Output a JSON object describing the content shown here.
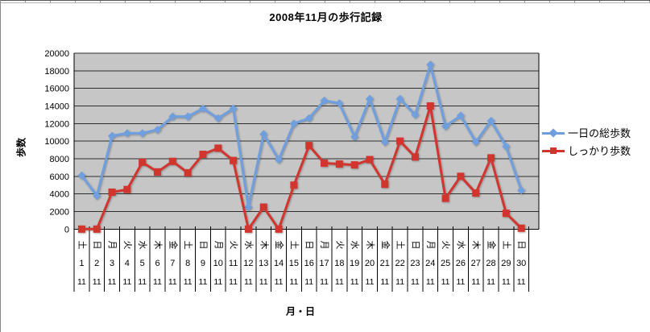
{
  "chart_data": {
    "type": "line",
    "title": "2008年11月の歩行記録",
    "x_axis_title": "月・日",
    "y_axis_title": "歩数",
    "ylim": [
      0,
      20000
    ],
    "y_ticks": [
      0,
      2000,
      4000,
      6000,
      8000,
      10000,
      12000,
      14000,
      16000,
      18000,
      20000
    ],
    "grid": true,
    "legend_position": "right",
    "plot_bg_color": "#c6c6c6",
    "grid_color": "#2e2e2e",
    "month_label": "11",
    "categories": [
      1,
      2,
      3,
      4,
      5,
      6,
      7,
      8,
      9,
      10,
      11,
      12,
      13,
      14,
      15,
      16,
      17,
      18,
      19,
      20,
      21,
      22,
      23,
      24,
      25,
      26,
      27,
      28,
      29,
      30
    ],
    "weekdays": [
      "土",
      "日",
      "月",
      "火",
      "水",
      "木",
      "金",
      "土",
      "日",
      "月",
      "火",
      "水",
      "木",
      "金",
      "土",
      "日",
      "月",
      "火",
      "水",
      "木",
      "金",
      "土",
      "日",
      "月",
      "火",
      "水",
      "木",
      "金",
      "土",
      "日"
    ],
    "series": [
      {
        "name": "一日の総歩数",
        "color": "#6f9fdf",
        "marker": "diamond",
        "values": [
          6100,
          3800,
          10600,
          10900,
          10900,
          11300,
          12800,
          12800,
          13700,
          12600,
          13700,
          2500,
          10800,
          7900,
          12000,
          12600,
          14600,
          14300,
          10500,
          14800,
          9900,
          14800,
          13000,
          18700,
          11700,
          12900,
          9900,
          12300,
          9400,
          4400
        ]
      },
      {
        "name": "しっかり歩数",
        "color": "#d2342e",
        "marker": "square",
        "values": [
          0,
          0,
          4200,
          4500,
          7600,
          6500,
          7700,
          6400,
          8500,
          9200,
          7800,
          0,
          2500,
          0,
          5000,
          9500,
          7500,
          7400,
          7300,
          7900,
          5100,
          10000,
          8200,
          14000,
          3500,
          6000,
          4100,
          8100,
          1800,
          100
        ]
      }
    ]
  }
}
